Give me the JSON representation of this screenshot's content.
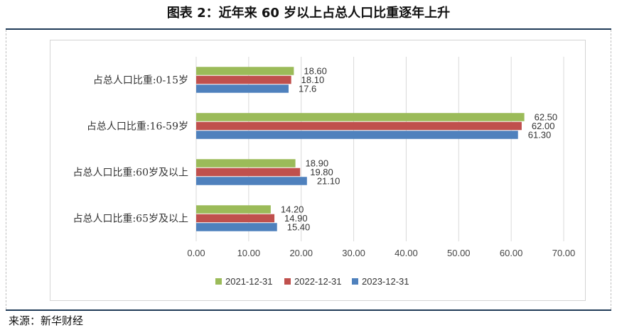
{
  "header": {
    "title": "图表 2：近年来 60 岁以上占总人口比重逐年上升"
  },
  "footer": {
    "source": "来源：新华财经"
  },
  "chart_data": {
    "type": "bar",
    "orientation": "horizontal",
    "categories": [
      "占总人口比重:0-15岁",
      "占总人口比重:16-59岁",
      "占总人口比重:60岁及以上",
      "占总人口比重:65岁及以上"
    ],
    "series": [
      {
        "name": "2021-12-31",
        "color": "#9bbb59",
        "values": [
          18.6,
          62.5,
          18.9,
          14.2
        ],
        "labels": [
          "18.60",
          "62.50",
          "18.90",
          "14.20"
        ]
      },
      {
        "name": "2022-12-31",
        "color": "#c0504d",
        "values": [
          18.1,
          62.0,
          19.8,
          14.9
        ],
        "labels": [
          "18.10",
          "62.00",
          "19.80",
          "14.90"
        ]
      },
      {
        "name": "2023-12-31",
        "color": "#4f81bd",
        "values": [
          17.6,
          61.3,
          21.1,
          15.4
        ],
        "labels": [
          "17.6",
          "61.30",
          "21.10",
          "15.40"
        ]
      }
    ],
    "xlim": [
      0,
      70
    ],
    "xticks": [
      0,
      10,
      20,
      30,
      40,
      50,
      60,
      70
    ],
    "xtick_labels": [
      "0.00",
      "10.00",
      "20.00",
      "30.00",
      "40.00",
      "50.00",
      "60.00",
      "70.00"
    ],
    "grid": "vertical",
    "legend": "bottom"
  }
}
